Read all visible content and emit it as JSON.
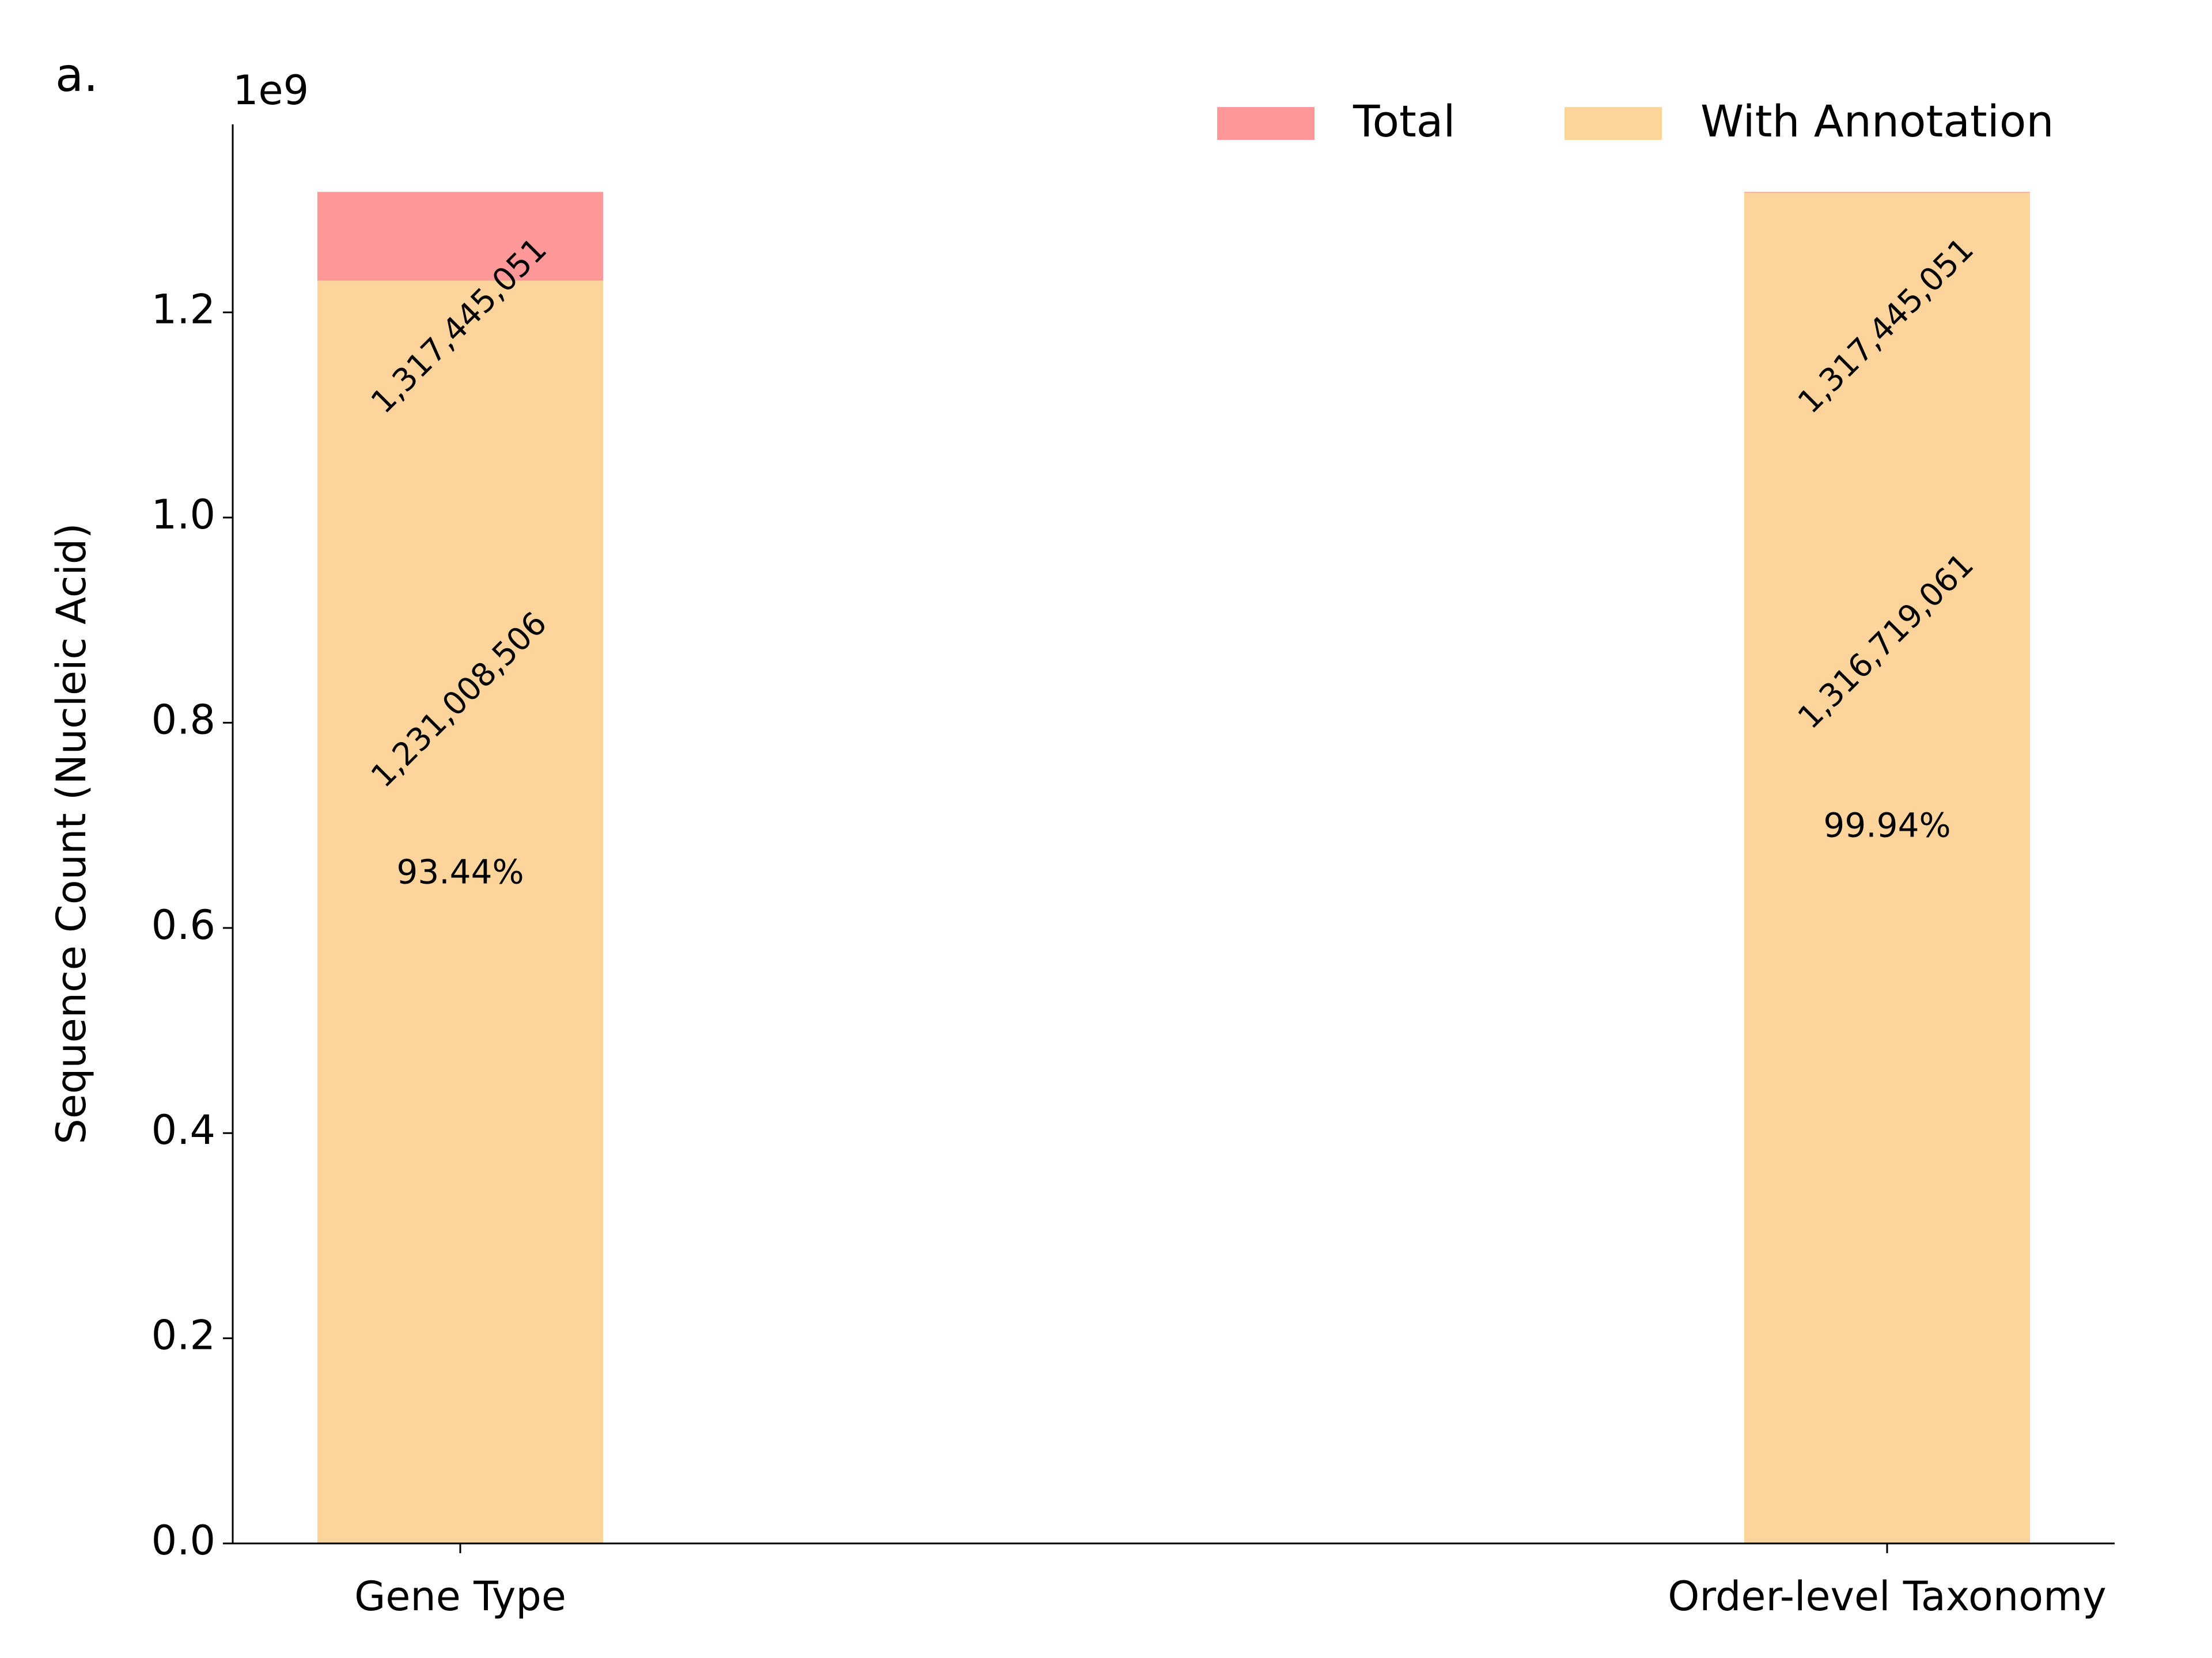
{
  "chart_data": {
    "type": "bar",
    "panel_label": "a.",
    "y_offset_label": "1e9",
    "y_label": "Sequence Count (Nucleic Acid)",
    "categories": [
      "Gene Type",
      "Order-level Taxonomy"
    ],
    "series": [
      {
        "name": "Total",
        "color": "#ff9999",
        "values": [
          1317445051,
          1317445051
        ],
        "value_labels": [
          "1,317,445,051",
          "1,317,445,051"
        ]
      },
      {
        "name": "With Annotation",
        "color": "#fdd59c",
        "values": [
          1231008506,
          1316719061
        ],
        "value_labels": [
          "1,231,008,506",
          "1,316,719,061"
        ]
      }
    ],
    "annotations": [
      "93.44%",
      "99.94%"
    ],
    "ylim": [
      0,
      1383300000
    ],
    "yticks": [
      {
        "value": 0,
        "label": "0.0"
      },
      {
        "value": 200000000,
        "label": "0.2"
      },
      {
        "value": 400000000,
        "label": "0.4"
      },
      {
        "value": 600000000,
        "label": "0.6"
      },
      {
        "value": 800000000,
        "label": "0.8"
      },
      {
        "value": 1000000000,
        "label": "1.0"
      },
      {
        "value": 1200000000,
        "label": "1.2"
      }
    ],
    "grid": false,
    "legend": "upper right"
  }
}
